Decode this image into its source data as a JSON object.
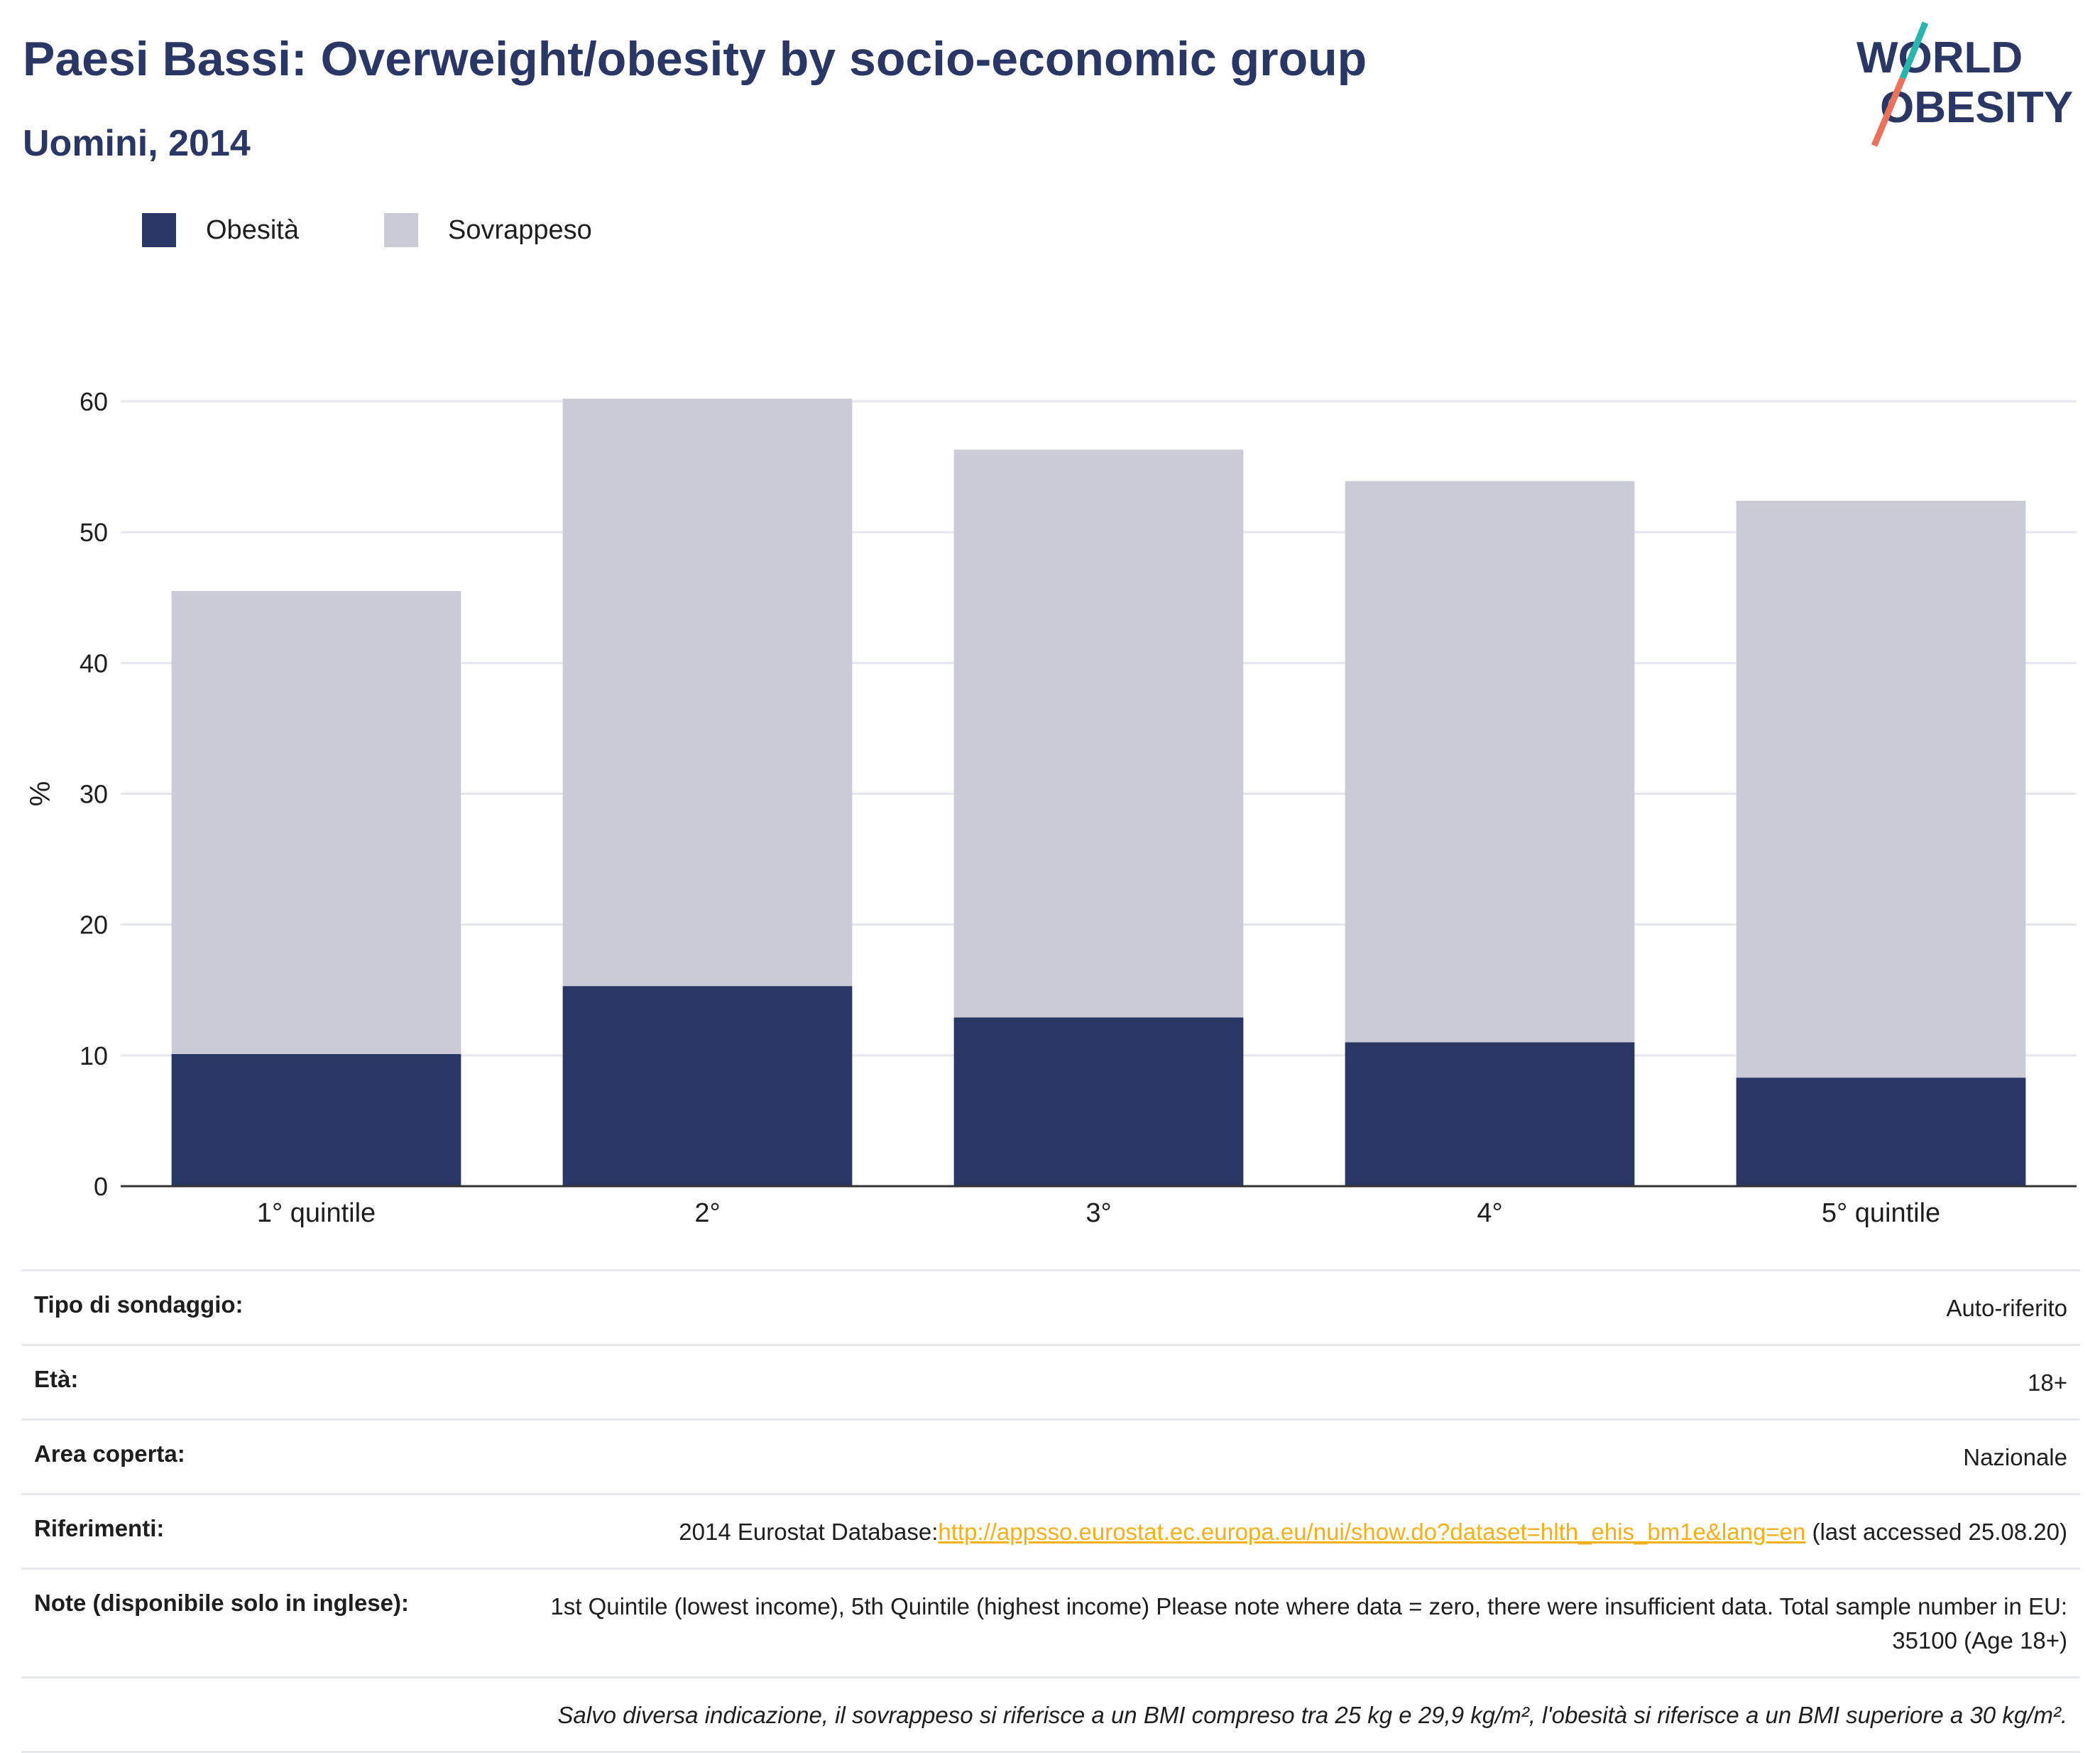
{
  "title": "Paesi Bassi: Overweight/obesity by socio-economic group",
  "subtitle": "Uomini, 2014",
  "logo": {
    "line1": "WORLD",
    "line2": "OBESITY",
    "accent1": "#2bb3ae",
    "accent2": "#e8735b",
    "color": "#2a3664"
  },
  "colors": {
    "obesity": "#2a3664",
    "overweight": "#c9cbd6",
    "axis": "#333333",
    "grid": "#e6e6ee"
  },
  "chart_data": {
    "type": "bar",
    "stacked": true,
    "categories": [
      "1° quintile",
      "2°",
      "3°",
      "4°",
      "5° quintile"
    ],
    "series": [
      {
        "name": "Obesità",
        "values": [
          10.1,
          15.3,
          12.9,
          11.0,
          8.3
        ]
      },
      {
        "name": "Sovrappeso",
        "values": [
          35.4,
          44.9,
          43.4,
          42.9,
          44.1
        ]
      }
    ],
    "ylabel": "%",
    "xlabel": "",
    "ylim": [
      0,
      60
    ],
    "yticks": [
      0,
      10,
      20,
      30,
      40,
      50,
      60
    ],
    "grid": true,
    "legend": "top-left"
  },
  "info": {
    "survey_key": "Tipo di sondaggio:",
    "survey_val": "Auto-riferito",
    "age_key": "Età:",
    "age_val": "18+",
    "area_key": "Area coperta:",
    "area_val": "Nazionale",
    "refs_key": "Riferimenti:",
    "refs_prefix": "2014 Eurostat Database:",
    "refs_link": "http://appsso.eurostat.ec.europa.eu/nui/show.do?dataset=hlth_ehis_bm1e&lang=en",
    "refs_suffix": " (last accessed 25.08.20)",
    "notes_key": "Note (disponibile solo in inglese):",
    "notes_val": "1st Quintile (lowest income), 5th Quintile (highest income) Please note where data = zero, there were insufficient data. Total sample number in EU: 35100 (Age 18+)",
    "footnote": "Salvo diversa indicazione, il sovrappeso si riferisce a un BMI compreso tra 25 kg e 29,9 kg/m², l'obesità si riferisce a un BMI superiore a 30 kg/m²."
  }
}
